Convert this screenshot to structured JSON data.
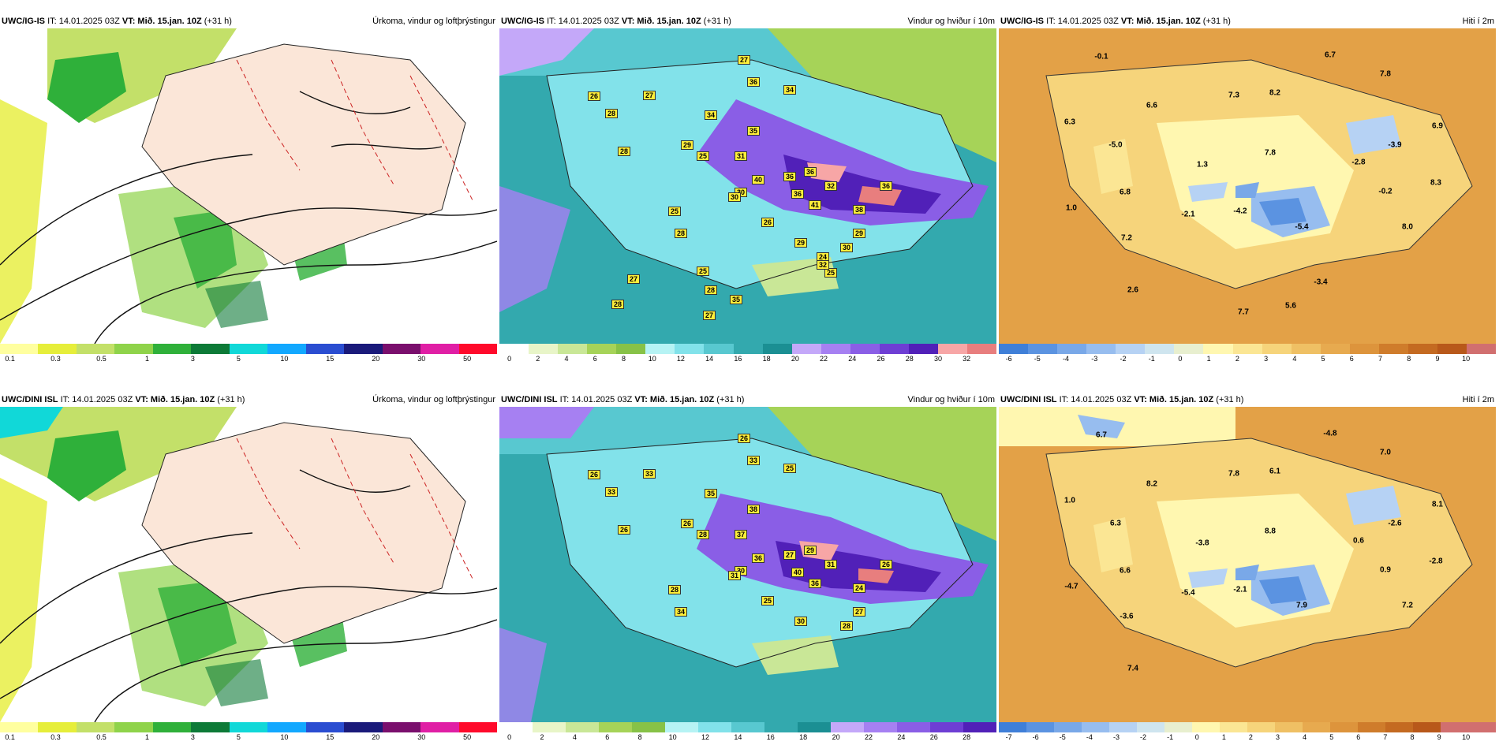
{
  "common": {
    "issue": "IT: 14.01.2025 03Z",
    "valid_prefix": "VT:",
    "valid_day": "Mið. 15.jan. 10Z",
    "lead": "(+31 h)"
  },
  "titles": {
    "precip": "Úrkoma, vindur og loftþrýstingur",
    "wind": "Vindur og hviður í 10m",
    "temp": "Hiti í 2m"
  },
  "models": [
    "UWC/IG-IS",
    "UWC/DINI ISL"
  ],
  "colors": {
    "precip": [
      "#ffff9f",
      "#e6ee3a",
      "#c3e069",
      "#8fd34a",
      "#2fb03a",
      "#0d7a37",
      "#11d8d8",
      "#12a8ff",
      "#2a4dd1",
      "#1a1a7a",
      "#7a0f6d",
      "#e01fa5",
      "#ff0a2b"
    ],
    "wind": [
      "#ffffff",
      "#e8f5c8",
      "#c9e797",
      "#a6d358",
      "#87c247",
      "#b6f3f4",
      "#82e2ea",
      "#58c8d0",
      "#33a9ae",
      "#1b8f93",
      "#c4a8f9",
      "#a680f2",
      "#8a5ee6",
      "#6e3ed4",
      "#5120b8",
      "#f7a6a6",
      "#e87e7e",
      "#d44b4b",
      "#b21818",
      "#8f0808",
      "#f3b83a"
    ],
    "temp": [
      "#3f7fd8",
      "#5b93e1",
      "#79a8e8",
      "#97bdef",
      "#b6d2f4",
      "#cfe5ef",
      "#e8efcf",
      "#fff7b0",
      "#fbe694",
      "#f6d47b",
      "#efc064",
      "#e7aa4f",
      "#dd943c",
      "#cf7c2b",
      "#c46a21",
      "#b8581a",
      "#d16f6f"
    ]
  },
  "colorbars": {
    "precip": [
      "0.1",
      "0.3",
      "0.5",
      "1",
      "3",
      "5",
      "10",
      "15",
      "20",
      "30",
      "50"
    ],
    "wind_top": [
      "0",
      "2",
      "4",
      "6",
      "8",
      "10",
      "12",
      "14",
      "16",
      "18",
      "20",
      "22",
      "24",
      "26",
      "28",
      "30",
      "32"
    ],
    "wind_bottom": [
      "0",
      "2",
      "4",
      "6",
      "8",
      "10",
      "12",
      "14",
      "16",
      "18",
      "20",
      "22",
      "24",
      "26",
      "28"
    ],
    "temp_top": [
      "-6",
      "-5",
      "-4",
      "-3",
      "-2",
      "-1",
      "0",
      "1",
      "2",
      "3",
      "4",
      "5",
      "6",
      "7",
      "8",
      "9",
      "10"
    ],
    "temp_bottom": [
      "-7",
      "-6",
      "-5",
      "-4",
      "-3",
      "-2",
      "-1",
      "0",
      "1",
      "2",
      "3",
      "4",
      "5",
      "6",
      "7",
      "8",
      "9",
      "10"
    ]
  },
  "gust_labels_top": [
    "27",
    "36",
    "34",
    "26",
    "27",
    "28",
    "34",
    "35",
    "31",
    "28",
    "29",
    "25",
    "36",
    "36",
    "30",
    "40",
    "36",
    "30",
    "41",
    "32",
    "38",
    "36",
    "25",
    "26",
    "29",
    "28",
    "29",
    "30",
    "25",
    "24",
    "25",
    "27",
    "32",
    "28",
    "35",
    "27",
    "28"
  ],
  "gust_labels_bottom": [
    "26",
    "33",
    "25",
    "26",
    "33",
    "33",
    "35",
    "38",
    "37",
    "26",
    "26",
    "28",
    "27",
    "29",
    "30",
    "36",
    "40",
    "31",
    "36",
    "31",
    "24",
    "26",
    "28",
    "25",
    "27",
    "34",
    "30",
    "28"
  ],
  "temp_labels_top": [
    "6.7",
    "-0.1",
    "7.8",
    "6.6",
    "7.3",
    "8.2",
    "6.3",
    "-5.0",
    "7.8",
    "1.3",
    "-2.8",
    "-3.9",
    "6.9",
    "6.8",
    "-0.2",
    "8.3",
    "1.0",
    "-2.1",
    "-4.2",
    "-5.4",
    "8.0",
    "7.2",
    "2.6",
    "-3.4",
    "7.7",
    "5.6"
  ],
  "temp_labels_bottom": [
    "-4.8",
    "6.7",
    "7.0",
    "8.2",
    "7.8",
    "6.1",
    "1.0",
    "6.3",
    "8.8",
    "-3.8",
    "0.6",
    "-2.6",
    "8.1",
    "6.6",
    "0.9",
    "-2.8",
    "-4.7",
    "-5.4",
    "-2.1",
    "7.9",
    "7.2",
    "-3.6",
    "7.4"
  ]
}
